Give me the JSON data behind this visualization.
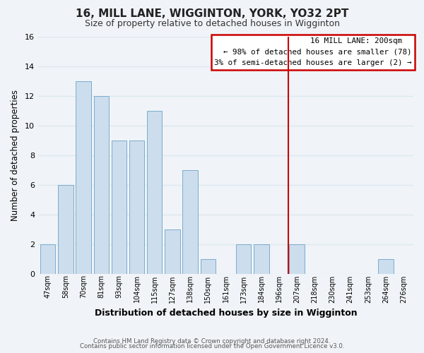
{
  "title": "16, MILL LANE, WIGGINTON, YORK, YO32 2PT",
  "subtitle": "Size of property relative to detached houses in Wigginton",
  "xlabel": "Distribution of detached houses by size in Wigginton",
  "ylabel": "Number of detached properties",
  "footer_line1": "Contains HM Land Registry data © Crown copyright and database right 2024.",
  "footer_line2": "Contains public sector information licensed under the Open Government Licence v3.0.",
  "bin_labels": [
    "47sqm",
    "58sqm",
    "70sqm",
    "81sqm",
    "93sqm",
    "104sqm",
    "115sqm",
    "127sqm",
    "138sqm",
    "150sqm",
    "161sqm",
    "173sqm",
    "184sqm",
    "196sqm",
    "207sqm",
    "218sqm",
    "230sqm",
    "241sqm",
    "253sqm",
    "264sqm",
    "276sqm"
  ],
  "bar_values": [
    2,
    6,
    13,
    12,
    9,
    9,
    11,
    3,
    7,
    1,
    0,
    2,
    2,
    0,
    2,
    0,
    0,
    0,
    0,
    1,
    0
  ],
  "bar_color": "#ccdded",
  "bar_edge_color": "#7aadcc",
  "vline_color": "#cc0000",
  "ylim": [
    0,
    16
  ],
  "yticks": [
    0,
    2,
    4,
    6,
    8,
    10,
    12,
    14,
    16
  ],
  "annotation_title": "16 MILL LANE: 200sqm",
  "annotation_line1": "← 98% of detached houses are smaller (78)",
  "annotation_line2": "3% of semi-detached houses are larger (2) →",
  "background_color": "#f0f4f8",
  "grid_color": "#dce8f0",
  "title_fontsize": 11,
  "subtitle_fontsize": 9
}
